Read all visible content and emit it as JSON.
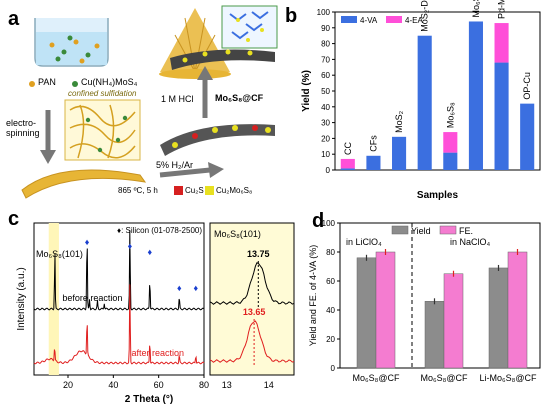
{
  "panel_labels": {
    "a": "a",
    "b": "b",
    "c": "c",
    "d": "d"
  },
  "panel_a": {
    "precursor_pan": "PAN",
    "precursor_cu": "Cu(NH₄)MoS₄",
    "confined": "confined sulfidation",
    "step1": "electro-\nspinning",
    "step2_gas": "5% H₂/Ar",
    "step2_cond": "865 ºC, 5 h",
    "step3": "1 M HCl",
    "product": "Mo₆S₈@CF",
    "legend_cu2s": "Cu₂S",
    "legend_cumo": "Cu₂Mo₆S₈",
    "colors": {
      "pan": "#e0a020",
      "cu": "#3a8a3a",
      "fiber": "#e7b535",
      "cu2s": "#d62020",
      "cumo": "#e8e020",
      "arrow": "#777777"
    }
  },
  "panel_b": {
    "chart_data": {
      "type": "bar",
      "stacked": true,
      "categories": [
        "CC",
        "CFs",
        "MoS₂",
        "MoS₂-DMA",
        "Mo₆S₈",
        "Mo₆S₈@CF",
        "Pd-Mo",
        "OP-Cu"
      ],
      "series": [
        {
          "name": "4-VA",
          "color": "#3b6fe0",
          "values": [
            1,
            9,
            21,
            85,
            11,
            94,
            68,
            42
          ]
        },
        {
          "name": "4-EA",
          "color": "#ff4fd8",
          "values": [
            6,
            0,
            0,
            0,
            13,
            0,
            25,
            0
          ]
        }
      ],
      "xlabel": "Samples",
      "ylabel": "Yield (%)",
      "ylim": [
        0,
        100
      ],
      "yticks": [
        0,
        10,
        20,
        30,
        40,
        50,
        60,
        70,
        80,
        90,
        100
      ],
      "legend": "top-left"
    }
  },
  "panel_c": {
    "chart_data": {
      "type": "line",
      "xlabel": "2 Theta (°)",
      "ylabel": "Intensity (a.u.)",
      "xticks": [
        20,
        40,
        60,
        80
      ],
      "xlim": [
        5,
        80
      ],
      "series": [
        {
          "name": "before reaction",
          "color": "#000000"
        },
        {
          "name": "after reaction",
          "color": "#e02020"
        }
      ],
      "annotations": {
        "peak": "Mo₆S₈(101)",
        "silicon": "♦: Silicon (01-078-2500)"
      },
      "silicon_peaks_2theta": [
        28.4,
        47.3,
        56.1,
        69.1,
        76.4
      ],
      "inset": {
        "title": "Mo₆S₈(101)",
        "xticks": [
          13,
          14
        ],
        "xlim": [
          12.6,
          14.6
        ],
        "peak_before": "13.75",
        "peak_after": "13.65"
      }
    }
  },
  "panel_d": {
    "chart_data": {
      "type": "bar",
      "categories": [
        "Mo₆S₈@CF",
        "Mo₆S₈@CF",
        "Li-Mo₆S₈@CF"
      ],
      "groups": [
        "in LiClO₄",
        "in NaClO₄",
        "in NaClO₄"
      ],
      "series": [
        {
          "name": "Yield",
          "color": "#8c8c8c",
          "values": [
            76,
            46,
            69
          ]
        },
        {
          "name": "FE.",
          "color": "#f47cd0",
          "values": [
            80,
            65,
            80
          ]
        }
      ],
      "ylabel": "Yield and FE. of 4-VA (%)",
      "ylim": [
        0,
        100
      ],
      "yticks": [
        0,
        20,
        40,
        60,
        80,
        100
      ],
      "group_labels": [
        "in LiClO₄",
        "in NaClO₄"
      ],
      "legend": "top-center"
    }
  }
}
